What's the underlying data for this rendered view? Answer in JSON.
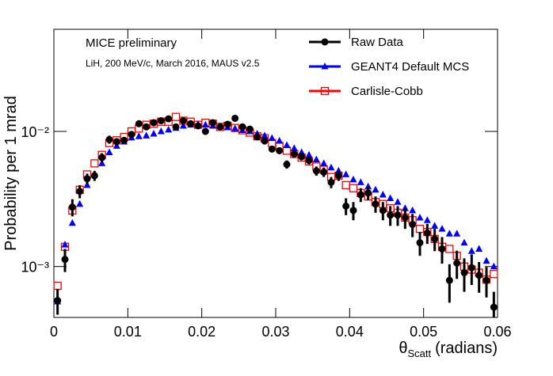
{
  "chart_data": {
    "type": "scatter",
    "annotations": [
      "MICE preliminary",
      "LiH, 200 MeV/c, March 2016, MAUS v2.5"
    ],
    "ylabel": "Probability per 1 mrad",
    "xlabel": {
      "symbol": "θ",
      "subscript": "Scatt",
      "text": "(radians)"
    },
    "log_y": true,
    "legend": "top-right",
    "xlim": [
      0,
      0.06
    ],
    "xticks": [
      0,
      0.01,
      0.02,
      0.03,
      0.04,
      0.05,
      0.06
    ],
    "ylim": [
      0.00042,
      0.057
    ],
    "yticks": [
      {
        "value": 0.001,
        "label": "10⁻³"
      },
      {
        "value": 0.01,
        "label": "10⁻²"
      }
    ],
    "x": [
      0.0005,
      0.0015,
      0.0025,
      0.0035,
      0.0045,
      0.0055,
      0.0065,
      0.0075,
      0.0085,
      0.0095,
      0.0105,
      0.0115,
      0.0125,
      0.0135,
      0.0145,
      0.0155,
      0.0165,
      0.0175,
      0.0185,
      0.0195,
      0.0205,
      0.0215,
      0.0225,
      0.0235,
      0.0245,
      0.0255,
      0.0265,
      0.0275,
      0.0285,
      0.0295,
      0.0305,
      0.0315,
      0.0325,
      0.0335,
      0.0345,
      0.0355,
      0.0365,
      0.0375,
      0.0385,
      0.0395,
      0.0405,
      0.0415,
      0.0425,
      0.0435,
      0.0445,
      0.0455,
      0.0465,
      0.0475,
      0.0485,
      0.0495,
      0.0505,
      0.0515,
      0.0525,
      0.0535,
      0.0545,
      0.0555,
      0.0565,
      0.0575,
      0.0585,
      0.0595
    ],
    "series": [
      {
        "name": "Raw Data",
        "color": "#000000",
        "marker": "circle",
        "values": [
          0.00056,
          0.00113,
          0.00275,
          0.0036,
          0.00447,
          0.0047,
          0.0064,
          0.0087,
          0.0084,
          0.0086,
          0.0095,
          0.0114,
          0.0108,
          0.0116,
          0.012,
          0.0124,
          0.0108,
          0.012,
          0.0114,
          0.011,
          0.01,
          0.0116,
          0.0108,
          0.0113,
          0.0125,
          0.0108,
          0.0104,
          0.0091,
          0.0085,
          0.0074,
          0.0072,
          0.0057,
          0.0068,
          0.0065,
          0.0061,
          0.0051,
          0.005,
          0.0042,
          0.0047,
          0.0028,
          0.0026,
          0.0034,
          0.0035,
          0.0029,
          0.0026,
          0.0024,
          0.0024,
          0.0023,
          0.00205,
          0.0015,
          0.00177,
          0.0016,
          0.00135,
          0.00079,
          0.00106,
          0.0009,
          0.00098,
          0.00086,
          0.00079,
          0.0005
        ],
        "errors": [
          0.00012,
          0.00022,
          0.0004,
          0.0004,
          0.0004,
          0.0004,
          0.0005,
          0.0006,
          0.0005,
          0.0005,
          0.0005,
          0.0006,
          0.0005,
          0.0005,
          0.0005,
          0.0005,
          0.0005,
          0.0005,
          0.0005,
          0.0005,
          0.0005,
          0.0005,
          0.0005,
          0.0005,
          0.0006,
          0.0005,
          0.0005,
          0.0005,
          0.0005,
          0.0004,
          0.0004,
          0.0004,
          0.0004,
          0.0004,
          0.0004,
          0.0004,
          0.0004,
          0.0004,
          0.0004,
          0.0004,
          0.0004,
          0.0004,
          0.0004,
          0.0004,
          0.0004,
          0.0004,
          0.0004,
          0.0004,
          0.0004,
          0.0003,
          0.0003,
          0.0003,
          0.0003,
          0.00025,
          0.00025,
          0.00025,
          0.00025,
          0.00022,
          0.0002,
          0.00015
        ]
      },
      {
        "name": "GEANT4 Default MCS",
        "color": "#0000ff",
        "marker": "triangle",
        "values": [
          0.00055,
          0.00145,
          0.0021,
          0.0029,
          0.004,
          0.0048,
          0.0058,
          0.007,
          0.0078,
          0.0084,
          0.009,
          0.0092,
          0.0093,
          0.0096,
          0.01,
          0.0103,
          0.0106,
          0.011,
          0.0112,
          0.0113,
          0.0112,
          0.011,
          0.0109,
          0.0107,
          0.0105,
          0.0102,
          0.01,
          0.0096,
          0.0093,
          0.0089,
          0.0085,
          0.0079,
          0.0075,
          0.007,
          0.0067,
          0.0062,
          0.0058,
          0.0054,
          0.0051,
          0.0048,
          0.0044,
          0.0042,
          0.0039,
          0.0037,
          0.0034,
          0.0032,
          0.003,
          0.0027,
          0.0026,
          0.0023,
          0.0022,
          0.002,
          0.0019,
          0.00175,
          0.00175,
          0.0015,
          0.0013,
          0.00135,
          0.0011,
          0.001
        ]
      },
      {
        "name": "Carlisle-Cobb",
        "color": "#ff0000",
        "marker": "open-square",
        "values": [
          0.00072,
          0.0014,
          0.0026,
          0.0037,
          0.0048,
          0.0058,
          0.0067,
          0.0082,
          0.0086,
          0.0091,
          0.01,
          0.0105,
          0.0112,
          0.0114,
          0.0118,
          0.0118,
          0.0128,
          0.012,
          0.0118,
          0.0112,
          0.0116,
          0.0114,
          0.0108,
          0.011,
          0.0106,
          0.0102,
          0.0098,
          0.0092,
          0.0089,
          0.0082,
          0.0078,
          0.0072,
          0.0068,
          0.0064,
          0.006,
          0.0055,
          0.0052,
          0.0046,
          0.0047,
          0.004,
          0.0038,
          0.0035,
          0.0033,
          0.003,
          0.0029,
          0.0027,
          0.0025,
          0.0023,
          0.0022,
          0.0019,
          0.0018,
          0.0016,
          0.0014,
          0.00135,
          0.0012,
          0.001,
          0.00095,
          0.0009,
          0.0008,
          0.00088
        ]
      }
    ]
  }
}
